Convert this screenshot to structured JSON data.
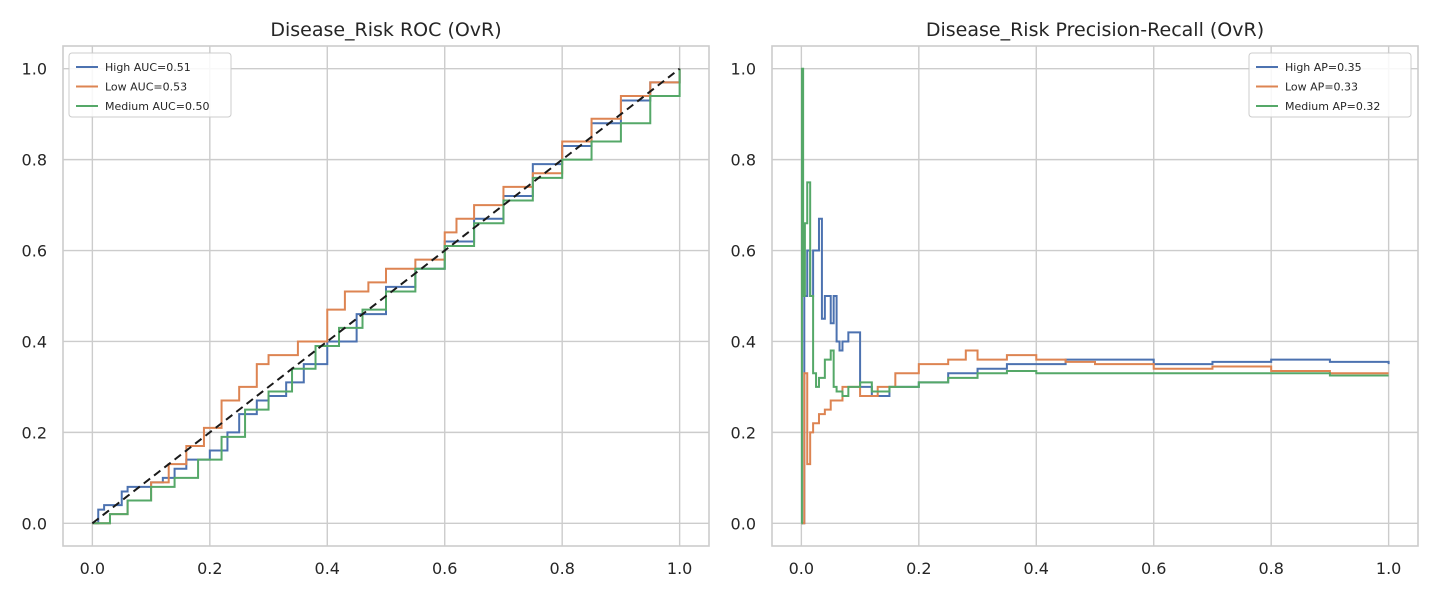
{
  "colors": {
    "High": "#4c72b0",
    "Low": "#dd8452",
    "Medium": "#55a868",
    "diagonal": "#1a1a1a",
    "grid": "#cccccc",
    "frame": "#cccccc"
  },
  "chart_data": [
    {
      "type": "line",
      "title": "Disease_Risk ROC (OvR)",
      "xlabel": "",
      "ylabel": "",
      "xlim": [
        -0.05,
        1.05
      ],
      "ylim": [
        -0.05,
        1.05
      ],
      "xticks": [
        0.0,
        0.2,
        0.4,
        0.6,
        0.8,
        1.0
      ],
      "yticks": [
        0.0,
        0.2,
        0.4,
        0.6,
        0.8,
        1.0
      ],
      "xtick_labels": [
        "0.0",
        "0.2",
        "0.4",
        "0.6",
        "0.8",
        "1.0"
      ],
      "ytick_labels": [
        "0.0",
        "0.2",
        "0.4",
        "0.6",
        "0.8",
        "1.0"
      ],
      "grid": true,
      "legend_position": "top-left",
      "series": [
        {
          "key": "High",
          "name": "High AUC=0.51",
          "x": [
            0.0,
            0.01,
            0.02,
            0.05,
            0.06,
            0.1,
            0.12,
            0.14,
            0.16,
            0.2,
            0.23,
            0.25,
            0.28,
            0.3,
            0.33,
            0.36,
            0.4,
            0.45,
            0.5,
            0.55,
            0.6,
            0.65,
            0.7,
            0.75,
            0.8,
            0.85,
            0.9,
            0.95,
            1.0
          ],
          "y": [
            0.0,
            0.03,
            0.04,
            0.07,
            0.08,
            0.09,
            0.1,
            0.12,
            0.14,
            0.16,
            0.2,
            0.24,
            0.27,
            0.28,
            0.31,
            0.35,
            0.4,
            0.46,
            0.52,
            0.56,
            0.62,
            0.67,
            0.72,
            0.79,
            0.83,
            0.88,
            0.93,
            0.97,
            1.0
          ]
        },
        {
          "key": "Low",
          "name": "Low AUC=0.53",
          "x": [
            0.0,
            0.03,
            0.06,
            0.1,
            0.13,
            0.16,
            0.19,
            0.22,
            0.25,
            0.28,
            0.3,
            0.35,
            0.4,
            0.43,
            0.47,
            0.5,
            0.55,
            0.6,
            0.62,
            0.65,
            0.7,
            0.75,
            0.8,
            0.85,
            0.9,
            0.95,
            1.0
          ],
          "y": [
            0.0,
            0.02,
            0.05,
            0.09,
            0.13,
            0.17,
            0.21,
            0.27,
            0.3,
            0.35,
            0.37,
            0.4,
            0.47,
            0.51,
            0.53,
            0.56,
            0.58,
            0.64,
            0.67,
            0.7,
            0.74,
            0.77,
            0.84,
            0.89,
            0.94,
            0.97,
            1.0
          ]
        },
        {
          "key": "Medium",
          "name": "Medium AUC=0.50",
          "x": [
            0.0,
            0.03,
            0.06,
            0.1,
            0.14,
            0.18,
            0.22,
            0.26,
            0.3,
            0.34,
            0.38,
            0.42,
            0.46,
            0.5,
            0.55,
            0.6,
            0.65,
            0.7,
            0.75,
            0.8,
            0.85,
            0.9,
            0.95,
            1.0
          ],
          "y": [
            0.0,
            0.02,
            0.05,
            0.08,
            0.1,
            0.14,
            0.19,
            0.25,
            0.29,
            0.34,
            0.39,
            0.43,
            0.47,
            0.51,
            0.56,
            0.61,
            0.66,
            0.71,
            0.76,
            0.8,
            0.84,
            0.88,
            0.94,
            1.0
          ]
        },
        {
          "key": "diagonal",
          "name": "",
          "dashed": true,
          "x": [
            0.0,
            1.0
          ],
          "y": [
            0.0,
            1.0
          ]
        }
      ]
    },
    {
      "type": "line",
      "title": "Disease_Risk Precision-Recall (OvR)",
      "xlabel": "",
      "ylabel": "",
      "xlim": [
        -0.05,
        1.05
      ],
      "ylim": [
        -0.05,
        1.05
      ],
      "xticks": [
        0.0,
        0.2,
        0.4,
        0.6,
        0.8,
        1.0
      ],
      "yticks": [
        0.0,
        0.2,
        0.4,
        0.6,
        0.8,
        1.0
      ],
      "xtick_labels": [
        "0.0",
        "0.2",
        "0.4",
        "0.6",
        "0.8",
        "1.0"
      ],
      "ytick_labels": [
        "0.0",
        "0.2",
        "0.4",
        "0.6",
        "0.8",
        "1.0"
      ],
      "grid": true,
      "legend_position": "top-right",
      "series": [
        {
          "key": "High",
          "name": "High AP=0.35",
          "x": [
            0.0,
            0.005,
            0.01,
            0.015,
            0.02,
            0.03,
            0.035,
            0.04,
            0.05,
            0.055,
            0.06,
            0.065,
            0.07,
            0.08,
            0.1,
            0.12,
            0.15,
            0.2,
            0.25,
            0.3,
            0.35,
            0.4,
            0.45,
            0.5,
            0.6,
            0.7,
            0.8,
            0.9,
            1.0
          ],
          "y": [
            0.0,
            0.5,
            0.6,
            0.5,
            0.6,
            0.67,
            0.45,
            0.5,
            0.44,
            0.5,
            0.4,
            0.38,
            0.4,
            0.42,
            0.3,
            0.28,
            0.3,
            0.31,
            0.33,
            0.34,
            0.35,
            0.35,
            0.36,
            0.36,
            0.35,
            0.355,
            0.36,
            0.355,
            0.35
          ]
        },
        {
          "key": "Low",
          "name": "Low AP=0.33",
          "x": [
            0.0,
            0.005,
            0.01,
            0.015,
            0.02,
            0.03,
            0.04,
            0.05,
            0.07,
            0.1,
            0.13,
            0.16,
            0.2,
            0.25,
            0.28,
            0.3,
            0.35,
            0.4,
            0.45,
            0.5,
            0.6,
            0.7,
            0.8,
            0.9,
            1.0
          ],
          "y": [
            0.0,
            0.33,
            0.13,
            0.2,
            0.22,
            0.24,
            0.25,
            0.27,
            0.3,
            0.28,
            0.3,
            0.33,
            0.35,
            0.36,
            0.38,
            0.36,
            0.37,
            0.36,
            0.355,
            0.35,
            0.34,
            0.345,
            0.335,
            0.33,
            0.33
          ]
        },
        {
          "key": "Medium",
          "name": "Medium AP=0.32",
          "x": [
            0.0,
            0.001,
            0.003,
            0.006,
            0.01,
            0.015,
            0.02,
            0.025,
            0.03,
            0.04,
            0.05,
            0.055,
            0.06,
            0.07,
            0.08,
            0.1,
            0.12,
            0.15,
            0.2,
            0.25,
            0.3,
            0.35,
            0.4,
            0.5,
            0.6,
            0.7,
            0.8,
            0.9,
            1.0
          ],
          "y": [
            0.0,
            1.0,
            0.5,
            0.66,
            0.75,
            0.5,
            0.33,
            0.3,
            0.32,
            0.36,
            0.38,
            0.3,
            0.29,
            0.28,
            0.3,
            0.31,
            0.29,
            0.3,
            0.31,
            0.32,
            0.33,
            0.335,
            0.33,
            0.33,
            0.33,
            0.33,
            0.33,
            0.325,
            0.325
          ]
        }
      ]
    }
  ]
}
